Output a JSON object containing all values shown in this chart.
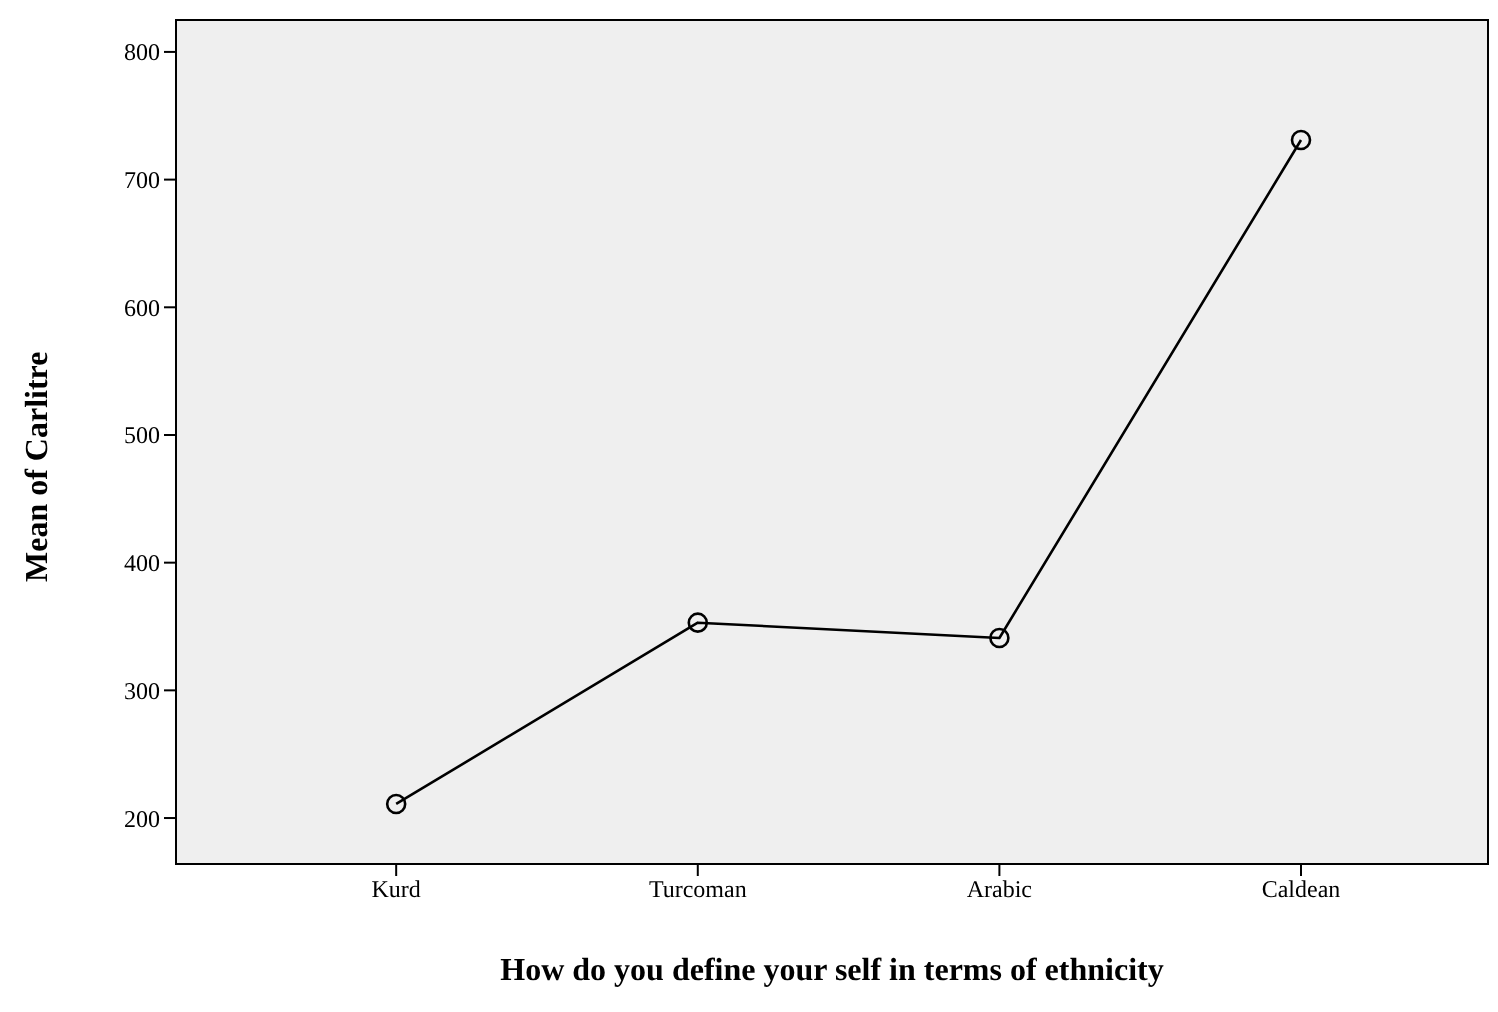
{
  "chart_data": {
    "type": "line",
    "xlabel": "How do you define your self in terms of ethnicity",
    "ylabel": "Mean of Carlitre",
    "categories": [
      "Kurd",
      "Turcoman",
      "Arabic",
      "Caldean"
    ],
    "series": [
      {
        "color": "#000000",
        "values": [
          211,
          353,
          341,
          731
        ]
      }
    ],
    "ylim": [
      164,
      825
    ],
    "yticks": [
      200,
      300,
      400,
      500,
      600,
      700,
      800
    ],
    "marker": "circle",
    "line_style": "solid"
  }
}
